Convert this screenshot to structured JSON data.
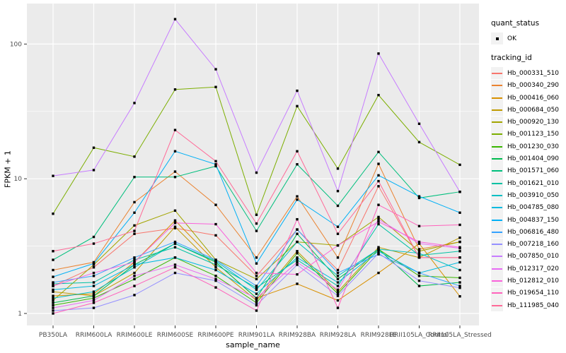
{
  "colors": {
    "panel_bg": "#EBEBEB",
    "grid": "#FFFFFF",
    "tick_mark": "#333333",
    "tick_text": "#4D4D4D",
    "legend_key_bg": "#F2F2F2",
    "marker": "#000000"
  },
  "legend": {
    "quant_status": {
      "title": "quant_status",
      "items": [
        {
          "label": "OK",
          "marker": "black-square-point"
        }
      ]
    },
    "tracking_id": {
      "title": "tracking_id"
    }
  },
  "chart_data": {
    "type": "line",
    "title": "",
    "xlabel": "sample_name",
    "ylabel": "FPKM + 1",
    "yscale": "log10",
    "ylim": [
      0.82,
      199
    ],
    "yticks": [
      1,
      10,
      100
    ],
    "yminor_breaks": [
      3.162,
      31.62
    ],
    "grid": true,
    "legend_position": "right",
    "marker": {
      "shape": "filled-square",
      "color": "#000000",
      "legend_label": "OK"
    },
    "categories": [
      "PB350LA",
      "RRIM600LA",
      "RRIM600LE",
      "RRIM600SE",
      "RRIM600PE",
      "RRIM901LA",
      "RRIM928BA",
      "RRIM928LA",
      "RRIM928LE",
      "RRII105LA_Control",
      "RRII105LA_Stressed"
    ],
    "series": [
      {
        "name": "Hb_000331_510",
        "color": "#F8766D",
        "values": [
          1.6,
          2.2,
          3.9,
          4.3,
          3.8,
          1.9,
          4.2,
          2.1,
          8.8,
          2.6,
          2.6
        ]
      },
      {
        "name": "Hb_000340_290",
        "color": "#EA8331",
        "values": [
          2.1,
          2.4,
          6.7,
          11.3,
          6.4,
          2.6,
          7.4,
          2.6,
          12.9,
          3.0,
          3.4
        ]
      },
      {
        "name": "Hb_000416_060",
        "color": "#D89000",
        "values": [
          1.35,
          1.4,
          2.4,
          4.9,
          2.4,
          1.3,
          1.66,
          1.25,
          2.0,
          3.3,
          1.34
        ]
      },
      {
        "name": "Hb_000684_050",
        "color": "#C09B00",
        "values": [
          1.45,
          1.35,
          2.0,
          4.4,
          2.2,
          1.25,
          2.9,
          1.45,
          3.1,
          2.6,
          3.65
        ]
      },
      {
        "name": "Hb_000920_130",
        "color": "#A3A500",
        "values": [
          1.25,
          2.3,
          4.5,
          5.8,
          2.5,
          1.8,
          3.4,
          3.2,
          5.2,
          2.9,
          3.4
        ]
      },
      {
        "name": "Hb_001123_150",
        "color": "#7CAE00",
        "values": [
          5.5,
          17.0,
          14.6,
          46.0,
          48.0,
          5.4,
          34.6,
          11.9,
          41.8,
          18.7,
          12.7
        ]
      },
      {
        "name": "Hb_001230_030",
        "color": "#39B600",
        "values": [
          1.15,
          1.3,
          1.8,
          2.6,
          1.9,
          1.2,
          2.8,
          1.4,
          3.0,
          1.9,
          1.84
        ]
      },
      {
        "name": "Hb_001404_090",
        "color": "#00BB4E",
        "values": [
          1.2,
          1.35,
          2.3,
          3.3,
          2.4,
          1.3,
          3.9,
          1.8,
          3.0,
          1.6,
          1.7
        ]
      },
      {
        "name": "Hb_001571_060",
        "color": "#00BF7D",
        "values": [
          2.5,
          3.7,
          10.3,
          10.3,
          12.4,
          4.1,
          12.8,
          6.3,
          15.8,
          7.2,
          8.0
        ]
      },
      {
        "name": "Hb_001621_010",
        "color": "#00C1A3",
        "values": [
          1.66,
          1.7,
          2.5,
          3.1,
          2.3,
          1.55,
          2.5,
          1.6,
          4.6,
          2.7,
          2.9
        ]
      },
      {
        "name": "Hb_003910_050",
        "color": "#00BFC4",
        "values": [
          1.3,
          1.45,
          2.2,
          3.3,
          2.45,
          1.5,
          3.4,
          1.9,
          3.0,
          2.8,
          2.1
        ]
      },
      {
        "name": "Hb_004785_080",
        "color": "#00BAE0",
        "values": [
          1.5,
          1.6,
          2.3,
          2.6,
          2.1,
          1.4,
          2.6,
          1.7,
          2.9,
          2.0,
          2.4
        ]
      },
      {
        "name": "Hb_004837_150",
        "color": "#00B0F6",
        "values": [
          1.87,
          2.35,
          5.6,
          16.0,
          12.8,
          2.35,
          7.0,
          4.4,
          10.6,
          7.4,
          5.6
        ]
      },
      {
        "name": "Hb_006816_480",
        "color": "#35A2FF",
        "values": [
          1.7,
          1.9,
          2.6,
          3.4,
          2.5,
          1.6,
          4.2,
          2.0,
          2.75,
          2.0,
          1.6
        ]
      },
      {
        "name": "Hb_007218_160",
        "color": "#9590FF",
        "values": [
          1.05,
          1.1,
          1.37,
          2.0,
          1.75,
          1.15,
          2.3,
          1.35,
          2.8,
          1.75,
          1.55
        ]
      },
      {
        "name": "Hb_007850_010",
        "color": "#C77CFF",
        "values": [
          10.5,
          11.6,
          36.5,
          153.0,
          65.0,
          11.1,
          45.0,
          8.1,
          85.0,
          25.6,
          8.0
        ]
      },
      {
        "name": "Hb_012317_020",
        "color": "#E76BF3",
        "values": [
          1.1,
          1.25,
          1.9,
          2.3,
          1.8,
          1.3,
          2.4,
          1.5,
          5.0,
          3.3,
          3.05
        ]
      },
      {
        "name": "Hb_012812_010",
        "color": "#FA62DB",
        "values": [
          1.6,
          2.0,
          2.4,
          4.7,
          4.6,
          2.0,
          1.95,
          3.2,
          4.8,
          3.4,
          3.1
        ]
      },
      {
        "name": "Hb_019654_110",
        "color": "#FF62BC",
        "values": [
          1.0,
          1.2,
          1.6,
          2.2,
          1.56,
          1.05,
          5.0,
          1.1,
          6.4,
          4.45,
          4.55
        ]
      },
      {
        "name": "Hb_111985_040",
        "color": "#FF6A98",
        "values": [
          2.9,
          3.3,
          4.1,
          23.0,
          13.5,
          4.65,
          16.0,
          3.9,
          9.6,
          2.6,
          2.6
        ]
      }
    ]
  }
}
